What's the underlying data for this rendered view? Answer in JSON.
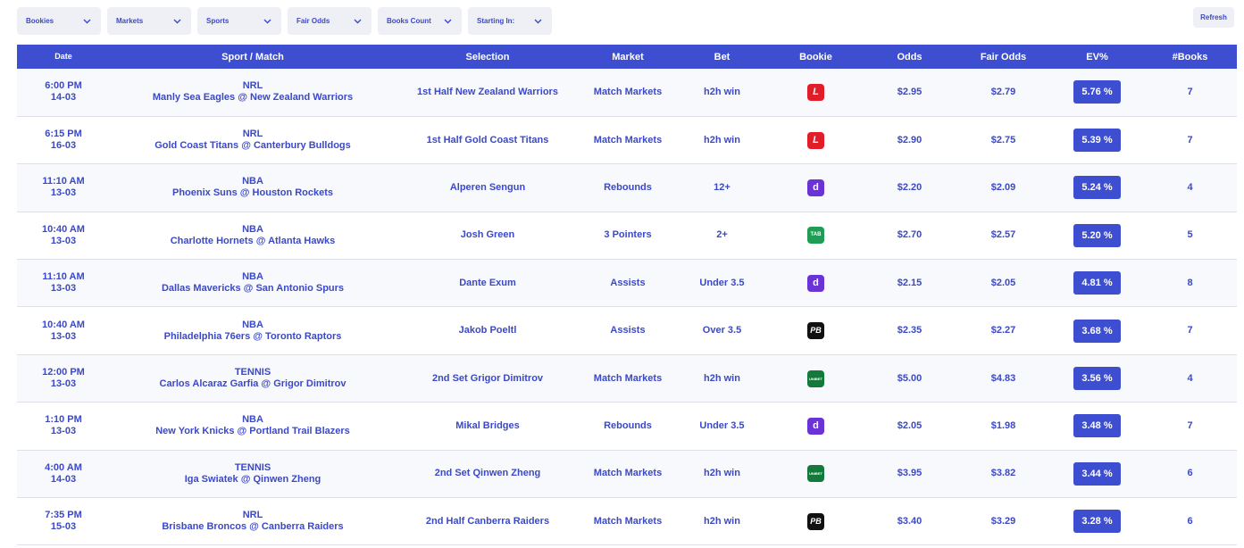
{
  "filters": [
    {
      "label": "Bookies"
    },
    {
      "label": "Markets"
    },
    {
      "label": "Sports"
    },
    {
      "label": "Fair Odds"
    },
    {
      "label": "Books Count"
    },
    {
      "label": "Starting In:"
    }
  ],
  "refresh_label": "Refresh",
  "columns": [
    "Date",
    "Sport / Match",
    "Selection",
    "Market",
    "Bet",
    "Bookie",
    "Odds",
    "Fair Odds",
    "EV%",
    "#Books"
  ],
  "rows": [
    {
      "time": "6:00 PM",
      "date": "14-03",
      "sport": "NRL",
      "match": "Manly Sea Eagles @ New Zealand Warriors",
      "selection": "1st Half New Zealand Warriors",
      "market": "Match Markets",
      "bet": "h2h win",
      "bookie_icon": "ladbrokes-icon",
      "bookie_glyph": "L",
      "bookie_class": "ladbrokes",
      "odds": "$2.95",
      "fair_odds": "$2.79",
      "ev": "5.76 %",
      "books": "7"
    },
    {
      "time": "6:15 PM",
      "date": "16-03",
      "sport": "NRL",
      "match": "Gold Coast Titans @ Canterbury Bulldogs",
      "selection": "1st Half Gold Coast Titans",
      "market": "Match Markets",
      "bet": "h2h win",
      "bookie_icon": "ladbrokes-icon",
      "bookie_glyph": "L",
      "bookie_class": "ladbrokes",
      "odds": "$2.90",
      "fair_odds": "$2.75",
      "ev": "5.39 %",
      "books": "7"
    },
    {
      "time": "11:10 AM",
      "date": "13-03",
      "sport": "NBA",
      "match": "Phoenix Suns @ Houston Rockets",
      "selection": "Alperen Sengun",
      "market": "Rebounds",
      "bet": "12+",
      "bookie_icon": "dabble-icon",
      "bookie_glyph": "d",
      "bookie_class": "dabble",
      "odds": "$2.20",
      "fair_odds": "$2.09",
      "ev": "5.24 %",
      "books": "4"
    },
    {
      "time": "10:40 AM",
      "date": "13-03",
      "sport": "NBA",
      "match": "Charlotte Hornets @ Atlanta Hawks",
      "selection": "Josh Green",
      "market": "3 Pointers",
      "bet": "2+",
      "bookie_icon": "tab-icon",
      "bookie_glyph": "TAB",
      "bookie_class": "tab",
      "odds": "$2.70",
      "fair_odds": "$2.57",
      "ev": "5.20 %",
      "books": "5"
    },
    {
      "time": "11:10 AM",
      "date": "13-03",
      "sport": "NBA",
      "match": "Dallas Mavericks @ San Antonio Spurs",
      "selection": "Dante Exum",
      "market": "Assists",
      "bet": "Under 3.5",
      "bookie_icon": "dabble-icon",
      "bookie_glyph": "d",
      "bookie_class": "dabble",
      "odds": "$2.15",
      "fair_odds": "$2.05",
      "ev": "4.81 %",
      "books": "8"
    },
    {
      "time": "10:40 AM",
      "date": "13-03",
      "sport": "NBA",
      "match": "Philadelphia 76ers @ Toronto Raptors",
      "selection": "Jakob Poeltl",
      "market": "Assists",
      "bet": "Over 3.5",
      "bookie_icon": "pointsbet-icon",
      "bookie_glyph": "PB",
      "bookie_class": "pb",
      "odds": "$2.35",
      "fair_odds": "$2.27",
      "ev": "3.68 %",
      "books": "7"
    },
    {
      "time": "12:00 PM",
      "date": "13-03",
      "sport": "TENNIS",
      "match": "Carlos Alcaraz Garfia @ Grigor Dimitrov",
      "selection": "2nd Set Grigor Dimitrov",
      "market": "Match Markets",
      "bet": "h2h win",
      "bookie_icon": "unibet-icon",
      "bookie_glyph": "UNIBET",
      "bookie_class": "unibet",
      "odds": "$5.00",
      "fair_odds": "$4.83",
      "ev": "3.56 %",
      "books": "4"
    },
    {
      "time": "1:10 PM",
      "date": "13-03",
      "sport": "NBA",
      "match": "New York Knicks @ Portland Trail Blazers",
      "selection": "Mikal Bridges",
      "market": "Rebounds",
      "bet": "Under 3.5",
      "bookie_icon": "dabble-icon",
      "bookie_glyph": "d",
      "bookie_class": "dabble",
      "odds": "$2.05",
      "fair_odds": "$1.98",
      "ev": "3.48 %",
      "books": "7"
    },
    {
      "time": "4:00 AM",
      "date": "14-03",
      "sport": "TENNIS",
      "match": "Iga Swiatek @ Qinwen Zheng",
      "selection": "2nd Set Qinwen Zheng",
      "market": "Match Markets",
      "bet": "h2h win",
      "bookie_icon": "unibet-icon",
      "bookie_glyph": "UNIBET",
      "bookie_class": "unibet",
      "odds": "$3.95",
      "fair_odds": "$3.82",
      "ev": "3.44 %",
      "books": "6"
    },
    {
      "time": "7:35 PM",
      "date": "15-03",
      "sport": "NRL",
      "match": "Brisbane Broncos @ Canberra Raiders",
      "selection": "2nd Half Canberra Raiders",
      "market": "Match Markets",
      "bet": "h2h win",
      "bookie_icon": "pointsbet-icon",
      "bookie_glyph": "PB",
      "bookie_class": "pb",
      "odds": "$3.40",
      "fair_odds": "$3.29",
      "ev": "3.28 %",
      "books": "6"
    }
  ]
}
